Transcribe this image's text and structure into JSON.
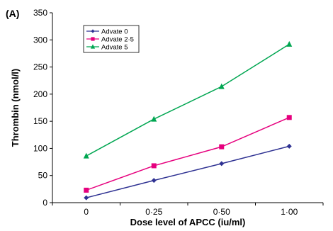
{
  "panel_label": "(A)",
  "chart_data": {
    "type": "line",
    "xlabel": "Dose level of APCC (iu/ml)",
    "ylabel": "Thrombin (nmol/l)",
    "categories": [
      "0",
      "0·25",
      "0·50",
      "1·00"
    ],
    "ylim": [
      0,
      350
    ],
    "yticks": [
      0,
      50,
      100,
      150,
      200,
      250,
      300,
      350
    ],
    "grid": false,
    "legend_position": "top-left",
    "series": [
      {
        "name": "Advate 0",
        "values": [
          9,
          41,
          72,
          104
        ],
        "color": "#2e3192",
        "marker": "diamond"
      },
      {
        "name": "Advate 2·5",
        "values": [
          23,
          68,
          103,
          157
        ],
        "color": "#e6007e",
        "marker": "square"
      },
      {
        "name": "Advate 5",
        "values": [
          86,
          154,
          214,
          292
        ],
        "color": "#00a651",
        "marker": "triangle"
      }
    ]
  }
}
